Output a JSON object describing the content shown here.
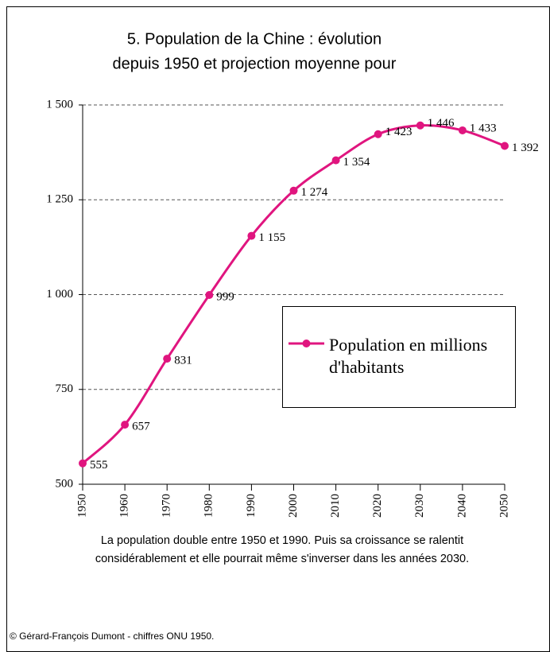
{
  "chart_data": {
    "type": "line",
    "title": [
      "5. Population de la Chine : évolution",
      "depuis 1950 et projection moyenne pour"
    ],
    "x": [
      1950,
      1960,
      1970,
      1980,
      1990,
      2000,
      2010,
      2020,
      2030,
      2040,
      2050
    ],
    "series": [
      {
        "name": "Population en millions d'habitants",
        "color": "#e0157f",
        "values": [
          555,
          657,
          831,
          999,
          1155,
          1274,
          1354,
          1423,
          1446,
          1433,
          1392
        ],
        "value_labels": [
          "555",
          "657",
          "831",
          "999",
          "1 155",
          "1 274",
          "1 354",
          "1 423",
          "1 446",
          "1 433",
          "1 392"
        ]
      }
    ],
    "xlim": [
      1950,
      2050
    ],
    "xticks": [
      1950,
      1960,
      1970,
      1980,
      1990,
      2000,
      2010,
      2020,
      2030,
      2040,
      2050
    ],
    "ylim": [
      500,
      1500
    ],
    "yticks": [
      500,
      {
        "value": 750,
        "label": "750"
      },
      {
        "value": 1000,
        "label": "1 000"
      },
      {
        "value": 1250,
        "label": "1 250"
      },
      {
        "value": 1500,
        "label": "1 500"
      }
    ],
    "grid": true,
    "caption": [
      "La population double entre 1950 et 1990. Puis sa croissance se ralentit",
      "considérablement et elle pourrait même s'inverser dans les années 2030."
    ],
    "source": "© Gérard-François Dumont - chiffres ONU 1950."
  }
}
